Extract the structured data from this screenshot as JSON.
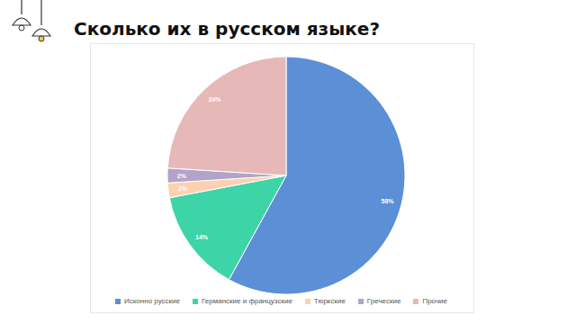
{
  "chart_data": {
    "type": "pie",
    "title": "Сколько их в русском языке?",
    "categories": [
      "Исконно русские",
      "Германские и французские",
      "Тюркские",
      "Греческие",
      "Прочие"
    ],
    "values": [
      58,
      14,
      2,
      2,
      24
    ],
    "value_labels": [
      "58%",
      "14%",
      "2%",
      "2%",
      "24%"
    ],
    "colors": [
      "#5b8fd6",
      "#3dd4a8",
      "#fdd0b0",
      "#b3a3c8",
      "#e6b8b8"
    ],
    "data_labels": true,
    "legend": "bottom"
  }
}
